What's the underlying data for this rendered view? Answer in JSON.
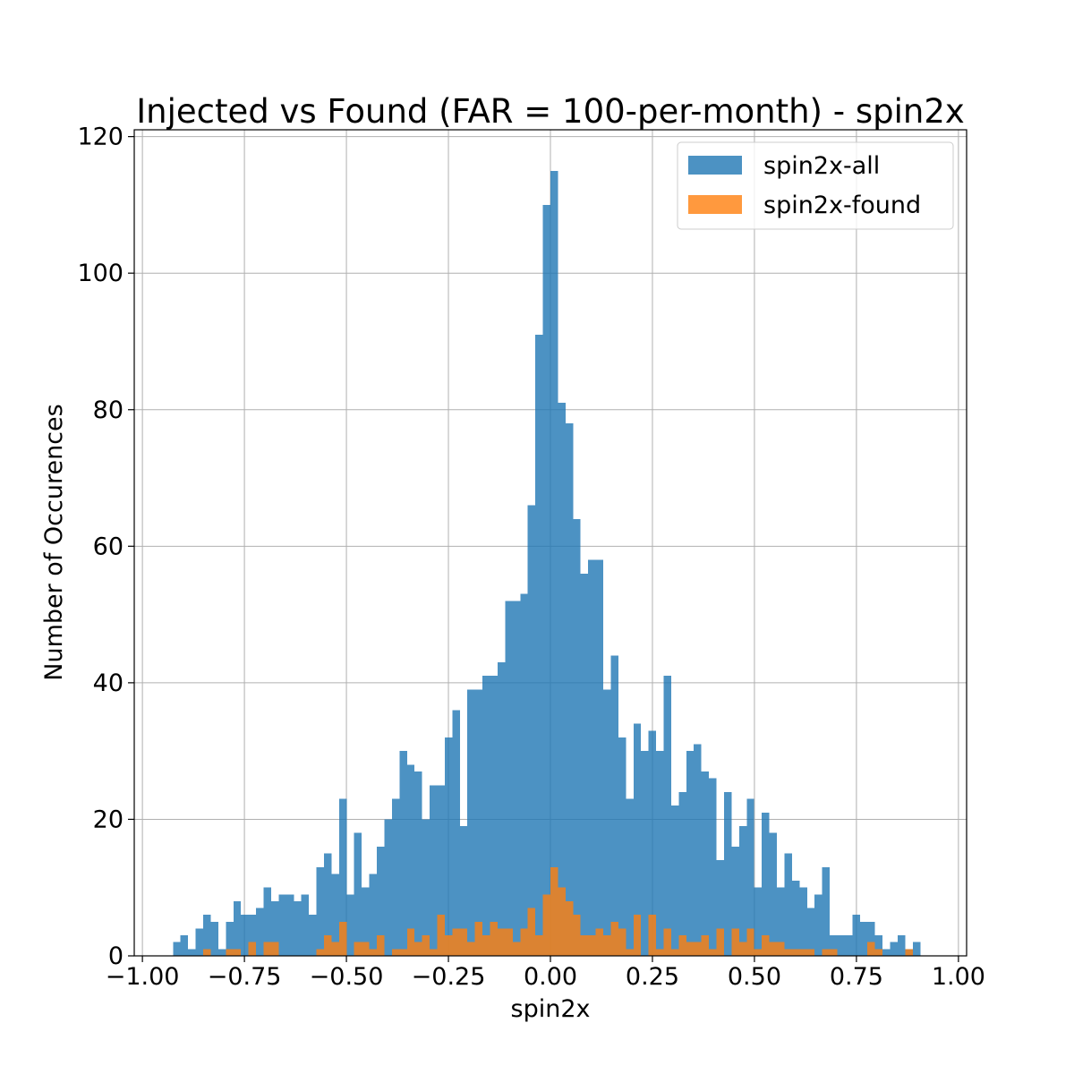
{
  "chart_data": {
    "type": "bar",
    "title": "Injected vs Found (FAR = 100-per-month) - spin2x",
    "xlabel": "spin2x",
    "ylabel": "Number of Occurences",
    "xlim": [
      -1.02,
      1.02
    ],
    "ylim": [
      0,
      121
    ],
    "grid": true,
    "legend_position": "top-right",
    "x_ticks": [
      -1.0,
      -0.75,
      -0.5,
      -0.25,
      0.0,
      0.25,
      0.5,
      0.75,
      1.0
    ],
    "x_tick_labels": [
      "−1.00",
      "−0.75",
      "−0.50",
      "−0.25",
      "0.00",
      "0.25",
      "0.50",
      "0.75",
      "1.00"
    ],
    "y_ticks": [
      0,
      20,
      40,
      60,
      80,
      100,
      120
    ],
    "y_tick_labels": [
      "0",
      "20",
      "40",
      "60",
      "80",
      "100",
      "120"
    ],
    "bin_start": -0.925,
    "bin_width": 0.0185,
    "series": [
      {
        "name": "spin2x-all",
        "color": "#1f77b4",
        "values": [
          2,
          3,
          1,
          4,
          6,
          5,
          1,
          5,
          8,
          6,
          6,
          7,
          10,
          8,
          9,
          9,
          8,
          9,
          6,
          13,
          15,
          12,
          23,
          9,
          18,
          10,
          12,
          16,
          20,
          23,
          30,
          28,
          27,
          20,
          25,
          25,
          32,
          36,
          19,
          39,
          39,
          41,
          41,
          43,
          52,
          52,
          53,
          66,
          91,
          110,
          115,
          81,
          78,
          64,
          56,
          58,
          58,
          39,
          44,
          32,
          23,
          34,
          30,
          33,
          30,
          41,
          22,
          24,
          30,
          31,
          27,
          26,
          14,
          24,
          16,
          19,
          23,
          10,
          21,
          18,
          10,
          15,
          11,
          10,
          7,
          9,
          13,
          3,
          3,
          3,
          6,
          5,
          5,
          3,
          1,
          2,
          3,
          1,
          2
        ]
      },
      {
        "name": "spin2x-found",
        "color": "#ff7f0e",
        "values": [
          0,
          0,
          0,
          0,
          1,
          0,
          0,
          1,
          1,
          0,
          2,
          0,
          2,
          2,
          0,
          0,
          0,
          0,
          0,
          1,
          3,
          2,
          5,
          0,
          2,
          2,
          1,
          3,
          0,
          1,
          1,
          4,
          2,
          3,
          1,
          6,
          3,
          4,
          4,
          2,
          5,
          3,
          5,
          4,
          4,
          2,
          4,
          7,
          3,
          9,
          13,
          10,
          8,
          6,
          3,
          3,
          4,
          3,
          5,
          4,
          1,
          6,
          0,
          6,
          1,
          4,
          1,
          3,
          2,
          2,
          3,
          1,
          4,
          0,
          4,
          2,
          4,
          1,
          3,
          2,
          2,
          1,
          1,
          1,
          1,
          0,
          1,
          1,
          0,
          0,
          0,
          0,
          2,
          1,
          0,
          0,
          0,
          1,
          0
        ]
      }
    ]
  }
}
